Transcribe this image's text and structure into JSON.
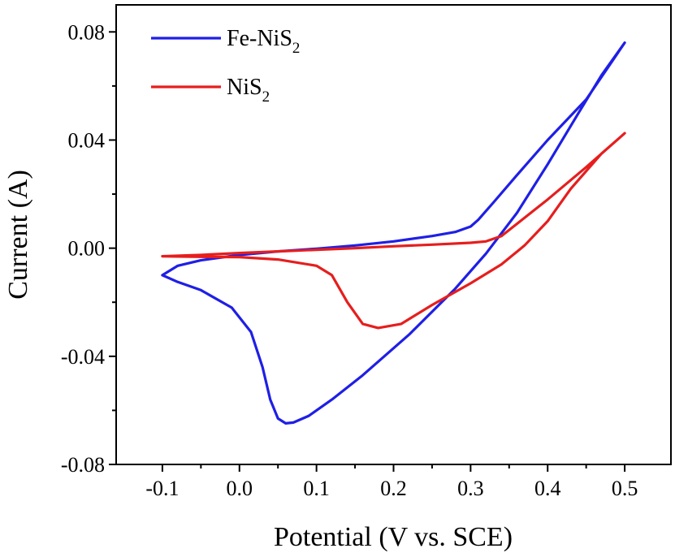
{
  "chart_data": {
    "type": "line",
    "title": "",
    "xlabel": "Potential (V vs. SCE)",
    "ylabel": "Current (A)",
    "xlim": [
      -0.16,
      0.56
    ],
    "ylim": [
      -0.08,
      0.09
    ],
    "xticks": [
      -0.1,
      0.0,
      0.1,
      0.2,
      0.3,
      0.4,
      0.5
    ],
    "yticks": [
      -0.08,
      -0.04,
      0.0,
      0.04,
      0.08
    ],
    "xtick_labels": [
      "-0.1",
      "0.0",
      "0.1",
      "0.2",
      "0.3",
      "0.4",
      "0.5"
    ],
    "ytick_labels": [
      "-0.08",
      "-0.04",
      "0.00",
      "0.04",
      "0.08"
    ],
    "grid": false,
    "legend_position": "top-left",
    "series": [
      {
        "name": "Fe-NiS2",
        "legend_main": "Fe-NiS",
        "legend_sub": "2",
        "color": "#1f1fe6",
        "points": [
          [
            -0.1,
            -0.01
          ],
          [
            -0.08,
            -0.0065
          ],
          [
            -0.05,
            -0.0045
          ],
          [
            0.0,
            -0.0025
          ],
          [
            0.05,
            -0.0012
          ],
          [
            0.1,
            -0.0002
          ],
          [
            0.15,
            0.001
          ],
          [
            0.2,
            0.0025
          ],
          [
            0.25,
            0.0045
          ],
          [
            0.28,
            0.006
          ],
          [
            0.3,
            0.008
          ],
          [
            0.31,
            0.0105
          ],
          [
            0.33,
            0.017
          ],
          [
            0.36,
            0.027
          ],
          [
            0.4,
            0.04
          ],
          [
            0.45,
            0.055
          ],
          [
            0.5,
            0.076
          ],
          [
            0.47,
            0.064
          ],
          [
            0.44,
            0.05
          ],
          [
            0.4,
            0.031
          ],
          [
            0.36,
            0.013
          ],
          [
            0.32,
            -0.002
          ],
          [
            0.28,
            -0.015
          ],
          [
            0.22,
            -0.032
          ],
          [
            0.16,
            -0.047
          ],
          [
            0.12,
            -0.056
          ],
          [
            0.09,
            -0.062
          ],
          [
            0.07,
            -0.0645
          ],
          [
            0.06,
            -0.0648
          ],
          [
            0.05,
            -0.063
          ],
          [
            0.04,
            -0.056
          ],
          [
            0.03,
            -0.044
          ],
          [
            0.015,
            -0.031
          ],
          [
            -0.01,
            -0.022
          ],
          [
            -0.05,
            -0.0155
          ],
          [
            -0.08,
            -0.0125
          ],
          [
            -0.1,
            -0.01
          ]
        ]
      },
      {
        "name": "NiS2",
        "legend_main": "NiS",
        "legend_sub": "2",
        "color": "#e61e1e",
        "points": [
          [
            -0.1,
            -0.003
          ],
          [
            -0.05,
            -0.0025
          ],
          [
            0.0,
            -0.0018
          ],
          [
            0.05,
            -0.0012
          ],
          [
            0.1,
            -0.0006
          ],
          [
            0.15,
            0.0
          ],
          [
            0.2,
            0.0007
          ],
          [
            0.25,
            0.0013
          ],
          [
            0.3,
            0.002
          ],
          [
            0.32,
            0.0025
          ],
          [
            0.34,
            0.0045
          ],
          [
            0.36,
            0.009
          ],
          [
            0.4,
            0.018
          ],
          [
            0.45,
            0.03
          ],
          [
            0.5,
            0.0425
          ],
          [
            0.47,
            0.035
          ],
          [
            0.43,
            0.022
          ],
          [
            0.4,
            0.01
          ],
          [
            0.37,
            0.001
          ],
          [
            0.34,
            -0.006
          ],
          [
            0.3,
            -0.013
          ],
          [
            0.25,
            -0.021
          ],
          [
            0.21,
            -0.028
          ],
          [
            0.18,
            -0.0295
          ],
          [
            0.16,
            -0.028
          ],
          [
            0.14,
            -0.02
          ],
          [
            0.12,
            -0.01
          ],
          [
            0.1,
            -0.0065
          ],
          [
            0.05,
            -0.0042
          ],
          [
            0.0,
            -0.0033
          ],
          [
            -0.05,
            -0.0032
          ],
          [
            -0.1,
            -0.003
          ]
        ]
      }
    ]
  }
}
